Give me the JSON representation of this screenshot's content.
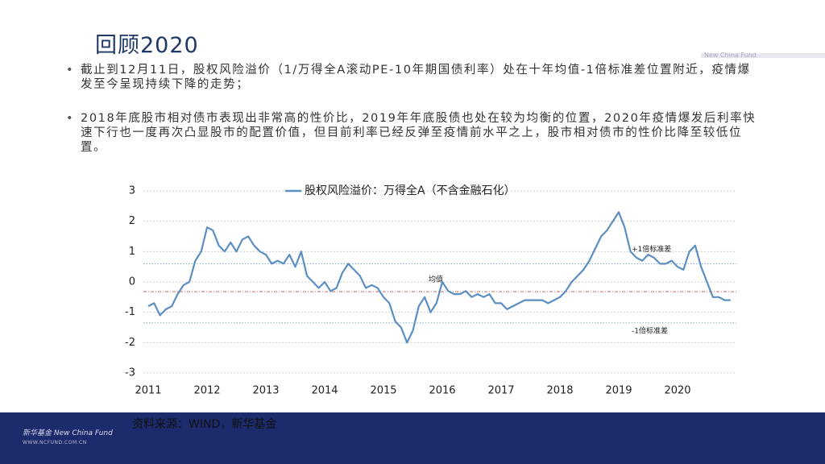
{
  "header": {
    "title": "回顾2020",
    "brand": "New China Fund"
  },
  "bullets": [
    "截止到12月11日，股权风险溢价（1/万得全A滚动PE-10年期国债利率）处在十年均值-1倍标准差位置附近，疫情爆发至今呈现持续下降的走势；",
    "2018年底股市相对债市表现出非常高的性价比，2019年年底股债也处在较为均衡的位置，2020年疫情爆发后利率快速下行也一度再次凸显股市的配置价值，但目前利率已经反弹至疫情前水平之上，股市相对债市的性价比降至较低位置。"
  ],
  "chart_data": {
    "type": "line",
    "xlim": [
      2011,
      2021
    ],
    "xticks": [
      2011,
      2012,
      2013,
      2014,
      2015,
      2016,
      2017,
      2018,
      2019,
      2020
    ],
    "ylim": [
      -3,
      3
    ],
    "yticks": [
      -3,
      -2,
      -1,
      0,
      1,
      2,
      3
    ],
    "grid": true,
    "x": [
      2011.0,
      2011.1,
      2011.2,
      2011.3,
      2011.4,
      2011.5,
      2011.6,
      2011.7,
      2011.8,
      2011.9,
      2012.0,
      2012.1,
      2012.2,
      2012.3,
      2012.4,
      2012.5,
      2012.6,
      2012.7,
      2012.8,
      2012.9,
      2013.0,
      2013.1,
      2013.2,
      2013.3,
      2013.4,
      2013.5,
      2013.6,
      2013.7,
      2013.8,
      2013.9,
      2014.0,
      2014.1,
      2014.2,
      2014.3,
      2014.4,
      2014.5,
      2014.6,
      2014.7,
      2014.8,
      2014.9,
      2015.0,
      2015.1,
      2015.2,
      2015.3,
      2015.4,
      2015.5,
      2015.6,
      2015.7,
      2015.8,
      2015.9,
      2016.0,
      2016.1,
      2016.2,
      2016.3,
      2016.4,
      2016.5,
      2016.6,
      2016.7,
      2016.8,
      2016.9,
      2017.0,
      2017.1,
      2017.2,
      2017.3,
      2017.4,
      2017.5,
      2017.6,
      2017.7,
      2017.8,
      2017.9,
      2018.0,
      2018.1,
      2018.2,
      2018.3,
      2018.4,
      2018.5,
      2018.6,
      2018.7,
      2018.8,
      2018.9,
      2019.0,
      2019.1,
      2019.2,
      2019.3,
      2019.4,
      2019.5,
      2019.6,
      2019.7,
      2019.8,
      2019.9,
      2020.0,
      2020.1,
      2020.2,
      2020.3,
      2020.4,
      2020.5,
      2020.6,
      2020.7,
      2020.8,
      2020.9
    ],
    "series": [
      {
        "name": "股权风险溢价：万得全A（不含金融石化）",
        "color": "#5b8fc3",
        "values": [
          -0.8,
          -0.7,
          -1.1,
          -0.9,
          -0.8,
          -0.4,
          -0.1,
          0.0,
          0.7,
          1.0,
          1.8,
          1.7,
          1.2,
          1.0,
          1.3,
          1.0,
          1.4,
          1.5,
          1.2,
          1.0,
          0.9,
          0.6,
          0.7,
          0.6,
          0.9,
          0.5,
          1.0,
          0.2,
          0.0,
          -0.2,
          0.0,
          -0.3,
          -0.2,
          0.3,
          0.6,
          0.4,
          0.2,
          -0.2,
          -0.1,
          -0.2,
          -0.5,
          -0.7,
          -1.3,
          -1.5,
          -2.0,
          -1.6,
          -0.8,
          -0.5,
          -1.0,
          -0.7,
          0.0,
          -0.3,
          -0.4,
          -0.4,
          -0.3,
          -0.5,
          -0.4,
          -0.5,
          -0.4,
          -0.7,
          -0.7,
          -0.9,
          -0.8,
          -0.7,
          -0.6,
          -0.6,
          -0.6,
          -0.6,
          -0.7,
          -0.6,
          -0.5,
          -0.3,
          0.0,
          0.2,
          0.4,
          0.7,
          1.1,
          1.5,
          1.7,
          2.0,
          2.3,
          1.8,
          1.0,
          0.8,
          0.7,
          0.9,
          0.8,
          0.6,
          0.6,
          0.7,
          0.5,
          0.4,
          1.0,
          1.2,
          0.5,
          0.0,
          -0.5,
          -0.5,
          -0.6,
          -0.6
        ]
      }
    ],
    "reference_lines": [
      {
        "value": 0.6,
        "label": "+1倍标准差",
        "color": "#5b8fc3"
      },
      {
        "value": -0.32,
        "label": "均值",
        "color": "#c0504d"
      },
      {
        "value": -1.35,
        "label": "-1倍标准差",
        "color": "#5b8fc3"
      }
    ]
  },
  "source": "资料来源：WIND，新华基金",
  "footer": {
    "brand": "新华基金 New China Fund",
    "url": "WWW.NCFUND.COM.CN"
  }
}
